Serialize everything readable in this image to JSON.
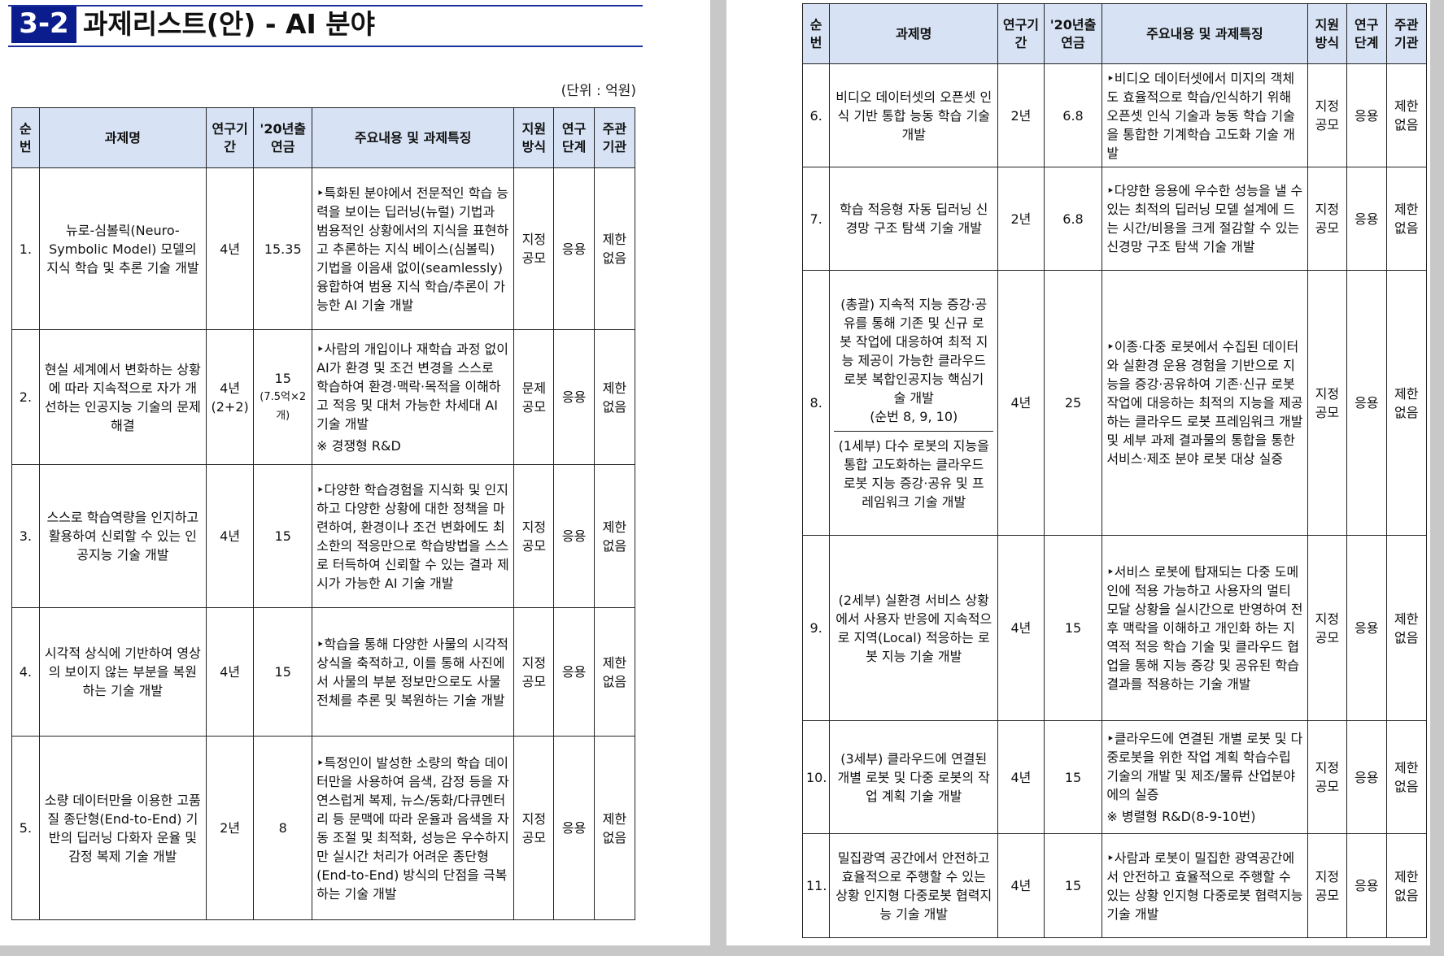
{
  "title": {
    "badge": "3-2",
    "text": "과제리스트(안) - AI 분야"
  },
  "unit_note": "(단위 : 억원)",
  "headers": {
    "no": "순번",
    "name": "과제명",
    "period": "연구기간",
    "budget": "'20년출연금",
    "content": "주요내용 및 과제특징",
    "support": "지원방식",
    "stage": "연구단계",
    "agency": "주관기관"
  },
  "rows_left": [
    {
      "no": "1.",
      "name": "뉴로-심볼릭(Neuro-Symbolic Model) 모델의 지식 학습 및 추론 기술 개발",
      "period": "4년",
      "budget": "15.35",
      "content": "‣특화된 분야에서 전문적인 학습 능력을 보이는 딥러닝(뉴럴) 기법과 범용적인 상황에서의 지식을 표현하고 추론하는 지식 베이스(심볼릭) 기법을 이음새 없이(seamlessly) 융합하여 범용 지식 학습/추론이 가능한 AI 기술 개발",
      "support": "지정공모",
      "stage": "응용",
      "agency": "제한없음"
    },
    {
      "no": "2.",
      "name": "현실 세계에서 변화하는 상황에 따라 지속적으로 자가 개선하는 인공지능 기술의 문제해결",
      "period": "4년\n(2+2)",
      "budget": "15",
      "budget_note": "(7.5억×2개)",
      "content": "‣사람의 개입이나 재학습 과정 없이 AI가 환경 및 조건 변경을 스스로 학습하여 환경·맥락·목적을 이해하고 적응 및 대처 가능한 차세대 AI 기술 개발",
      "content_note": "※ 경쟁형 R&D",
      "support": "문제공모",
      "stage": "응용",
      "agency": "제한없음"
    },
    {
      "no": "3.",
      "name": "스스로 학습역량을 인지하고 활용하여 신뢰할 수 있는 인공지능 기술 개발",
      "period": "4년",
      "budget": "15",
      "content": "‣다양한 학습경험을 지식화 및 인지하고 다양한 상황에 대한 정책을 마련하여, 환경이나 조건 변화에도 최소한의 적응만으로 학습방법을 스스로 터득하여 신뢰할 수 있는 결과 제시가 가능한 AI 기술 개발",
      "support": "지정공모",
      "stage": "응용",
      "agency": "제한없음"
    },
    {
      "no": "4.",
      "name": "시각적 상식에 기반하여 영상의 보이지 않는 부분을 복원하는 기술 개발",
      "period": "4년",
      "budget": "15",
      "content": "‣학습을 통해 다양한 사물의 시각적 상식을 축적하고, 이를 통해 사진에서 사물의 부분 정보만으로도 사물 전체를 추론 및 복원하는 기술 개발",
      "support": "지정공모",
      "stage": "응용",
      "agency": "제한없음"
    },
    {
      "no": "5.",
      "name": "소량 데이터만을 이용한 고품질 종단형(End-to-End) 기반의 딥러닝 다화자 운율 및 감정 복제 기술 개발",
      "period": "2년",
      "budget": "8",
      "content": "‣특정인이 발성한 소량의 학습 데이터만을 사용하여 음색, 감정 등을 자연스럽게 복제, 뉴스/동화/다큐멘터리 등 문맥에 따라 운율과 음색을 자동 조절 및 최적화, 성능은 우수하지만 실시간 처리가 어려운 종단형(End-to-End) 방식의 단점을 극복하는 기술 개발",
      "support": "지정공모",
      "stage": "응용",
      "agency": "제한없음"
    }
  ],
  "rows_right": [
    {
      "no": "6.",
      "name": "비디오 데이터셋의 오픈셋 인식 기반 통합 능동 학습 기술 개발",
      "period": "2년",
      "budget": "6.8",
      "content": "‣비디오 데이터셋에서 미지의 객체도 효율적으로 학습/인식하기 위해 오픈셋 인식 기술과 능동 학습 기술을 통합한 기계학습 고도화 기술 개발",
      "support": "지정공모",
      "stage": "응용",
      "agency": "제한없음"
    },
    {
      "no": "7.",
      "name": "학습 적응형 자동 딥러닝 신경망 구조 탐색 기술 개발",
      "period": "2년",
      "budget": "6.8",
      "content": "‣다양한 응용에 우수한 성능을 낼 수 있는 최적의 딥러닝 모델 설계에 드는 시간/비용을 크게 절감할 수 있는 신경망 구조 탐색 기술 개발",
      "support": "지정공모",
      "stage": "응용",
      "agency": "제한없음"
    },
    {
      "no": "8.",
      "name_main": "(총괄) 지속적 지능 증강·공유를 통해 기존 및 신규 로봇 작업에 대응하여 최적 지능 제공이 가능한 클라우드 로봇 복합인공지능 핵심기술 개발\n(순번 8, 9, 10)",
      "name_sub": "(1세부) 다수 로봇의 지능을 통합 고도화하는 클라우드 로봇 지능 증강·공유 및 프레임워크 기술 개발",
      "period": "4년",
      "budget": "25",
      "content": "‣이종·다중 로봇에서 수집된 데이터와 실환경 운용 경험을 기반으로 지능을 증강·공유하여 기존·신규 로봇 작업에 대응하는 최적의 지능을 제공하는 클라우드 로봇 프레임워크 개발 및 세부 과제 결과물의 통합을 통한 서비스·제조 분야 로봇 대상 실증",
      "support": "지정공모",
      "stage": "응용",
      "agency": "제한없음"
    },
    {
      "no": "9.",
      "name": "(2세부) 실환경 서비스 상황에서 사용자 반응에 지속적으로 지역(Local) 적응하는 로봇 지능 기술 개발",
      "period": "4년",
      "budget": "15",
      "content": "‣서비스 로봇에 탑재되는 다중 도메인에 적용 가능하고 사용자의 멀티 모달 상황을 실시간으로 반영하여 전후 맥락을 이해하고 개인화 하는 지역적 적응 학습 기술 및 클라우드 협업을 통해 지능 증강 및 공유된 학습 결과를 적용하는 기술 개발",
      "support": "지정공모",
      "stage": "응용",
      "agency": "제한없음"
    },
    {
      "no": "10.",
      "name": "(3세부) 클라우드에 연결된 개별 로봇 및 다중 로봇의 작업 계획 기술 개발",
      "period": "4년",
      "budget": "15",
      "content": "‣클라우드에 연결된 개별 로봇 및 다중로봇을 위한 작업 계획 학습수립 기술의 개발 및 제조/물류 산업분야에의 실증",
      "content_note": "※ 병렬형 R&D(8-9-10번)",
      "support": "지정공모",
      "stage": "응용",
      "agency": "제한없음"
    },
    {
      "no": "11.",
      "name": "밀집광역 공간에서 안전하고 효율적으로 주행할 수 있는 상황 인지형 다중로봇 협력지능 기술 개발",
      "period": "4년",
      "budget": "15",
      "content": "‣사람과 로봇이 밀집한 광역공간에서 안전하고 효율적으로 주행할 수 있는 상황 인지형 다중로봇 협력지능 기술 개발",
      "support": "지정공모",
      "stage": "응용",
      "agency": "제한없음"
    }
  ]
}
